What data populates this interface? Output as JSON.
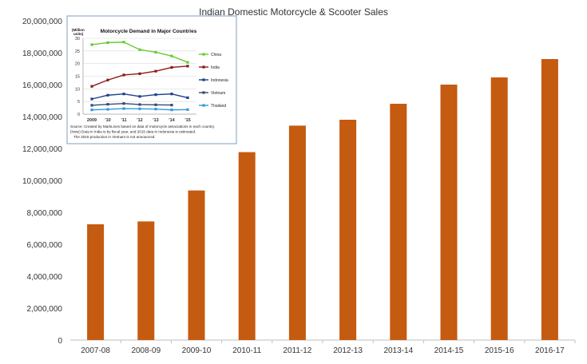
{
  "chart_data": [
    {
      "type": "bar",
      "title": "Indian Domestic Motorcycle & Scooter Sales",
      "xlabel": "",
      "ylabel": "",
      "categories": [
        "2007-08",
        "2008-09",
        "2009-10",
        "2010-11",
        "2011-12",
        "2012-13",
        "2013-14",
        "2014-15",
        "2015-16",
        "2016-17"
      ],
      "values": [
        7250000,
        7430000,
        9370000,
        11770000,
        13430000,
        13800000,
        14800000,
        16000000,
        16450000,
        17600000
      ],
      "ylim": [
        0,
        20000000
      ],
      "yticks": [
        "0",
        "2,000,000",
        "4,000,000",
        "6,000,000",
        "8,000,000",
        "10,000,000",
        "12,000,000",
        "14,000,000",
        "16,000,000",
        "18,000,000",
        "20,000,000"
      ],
      "color": "#c55a11",
      "grid": false
    },
    {
      "type": "line",
      "title": "Motorcycle Demand in Major Countries",
      "ylabel": "(Million units)",
      "categories": [
        "2009",
        "'10",
        "'11",
        "'12",
        "'13",
        "'14",
        "'15"
      ],
      "ylim": [
        0,
        30
      ],
      "yticks": [
        "0",
        "5",
        "10",
        "15",
        "20",
        "25",
        "30"
      ],
      "grid": true,
      "legend": "right",
      "series": [
        {
          "name": "China",
          "color": "#66cc33",
          "values": [
            27.5,
            28.3,
            28.5,
            25.5,
            24.5,
            23.0,
            20.5
          ]
        },
        {
          "name": "India",
          "color": "#8b1a1a",
          "values": [
            11.0,
            13.5,
            15.5,
            16.0,
            17.0,
            18.5,
            19.0
          ]
        },
        {
          "name": "Indonesia",
          "color": "#1f3f8f",
          "values": [
            6.0,
            7.5,
            8.0,
            7.0,
            7.7,
            8.0,
            6.5
          ]
        },
        {
          "name": "Vietnam",
          "color": "#3a4a6a",
          "values": [
            3.5,
            3.9,
            4.2,
            3.8,
            3.7,
            3.6,
            null
          ]
        },
        {
          "name": "Thailand",
          "color": "#3399dd",
          "values": [
            1.7,
            1.9,
            2.2,
            2.1,
            2.0,
            1.7,
            1.8
          ]
        }
      ],
      "note_lines": [
        "Source: Created by MarkLines based on data of motorcycle associations in each country.",
        "(Note) Data in India is by fiscal year, and   2015 data in Indonesia is estimated.",
        "The 2015 production in Vietnam is not announced."
      ]
    }
  ]
}
